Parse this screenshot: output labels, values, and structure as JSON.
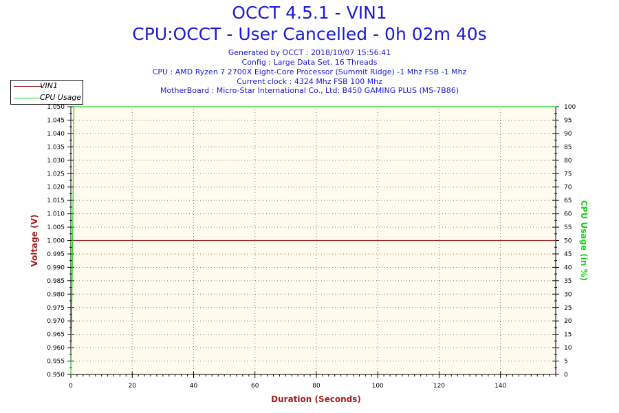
{
  "header": {
    "title_line1": "OCCT 4.5.1 - VIN1",
    "title_line2": "CPU:OCCT - User Cancelled - 0h 02m 40s",
    "info_lines": [
      "Generated by OCCT : 2018/10/07 15:56:41",
      "Config : Large Data Set, 16 Threads",
      "CPU : AMD Ryzen 7 2700X Eight-Core Processor (Summit Ridge) -1 Mhz FSB -1 Mhz",
      "Current clock : 4324 Mhz FSB 100 Mhz",
      "MotherBoard : Micro-Star International Co., Ltd: B450 GAMING PLUS (MS-7B86)"
    ]
  },
  "legend": {
    "items": [
      {
        "label": "VIN1",
        "color": "#8b1a1a"
      },
      {
        "label": "CPU Usage",
        "color": "#1fd01f"
      }
    ]
  },
  "colors": {
    "title": "#1a1ad6",
    "plot_background": "#fffbee",
    "grid_dots": "#7a7a6a",
    "vin1": "#8b1a1a",
    "cpu_usage": "#1fd01f",
    "left_axis_title": "#a51f1f",
    "right_axis_title": "#1fd01f",
    "x_axis_title": "#a51f1f"
  },
  "chart_data": {
    "type": "line",
    "title": "OCCT 4.5.1 - VIN1",
    "xlabel": "Duration (Seconds)",
    "ylabel": "Voltage (V)",
    "y2label": "CPU Usage (in %)",
    "xlim": [
      0,
      158
    ],
    "ylim": [
      0.95,
      1.05
    ],
    "y2lim": [
      0,
      100
    ],
    "x_ticks": [
      0,
      20,
      40,
      60,
      80,
      100,
      120,
      140
    ],
    "y_ticks": [
      "0.950",
      "0.955",
      "0.960",
      "0.965",
      "0.970",
      "0.975",
      "0.980",
      "0.985",
      "0.990",
      "0.995",
      "1.000",
      "1.005",
      "1.010",
      "1.015",
      "1.020",
      "1.025",
      "1.030",
      "1.035",
      "1.040",
      "1.045",
      "1.050"
    ],
    "y2_ticks": [
      "0",
      "5",
      "10",
      "15",
      "20",
      "25",
      "30",
      "35",
      "40",
      "45",
      "50",
      "55",
      "60",
      "65",
      "70",
      "75",
      "80",
      "85",
      "90",
      "95",
      "100"
    ],
    "grid": true,
    "legend_position": "top-left",
    "series": [
      {
        "name": "VIN1",
        "axis": "left",
        "color": "#8b1a1a",
        "x": [
          0,
          158
        ],
        "values": [
          1.0,
          1.0
        ]
      },
      {
        "name": "CPU Usage",
        "axis": "right",
        "color": "#1fd01f",
        "x": [
          0,
          0.5,
          1,
          158
        ],
        "values": [
          0,
          40,
          100,
          100
        ]
      }
    ]
  }
}
